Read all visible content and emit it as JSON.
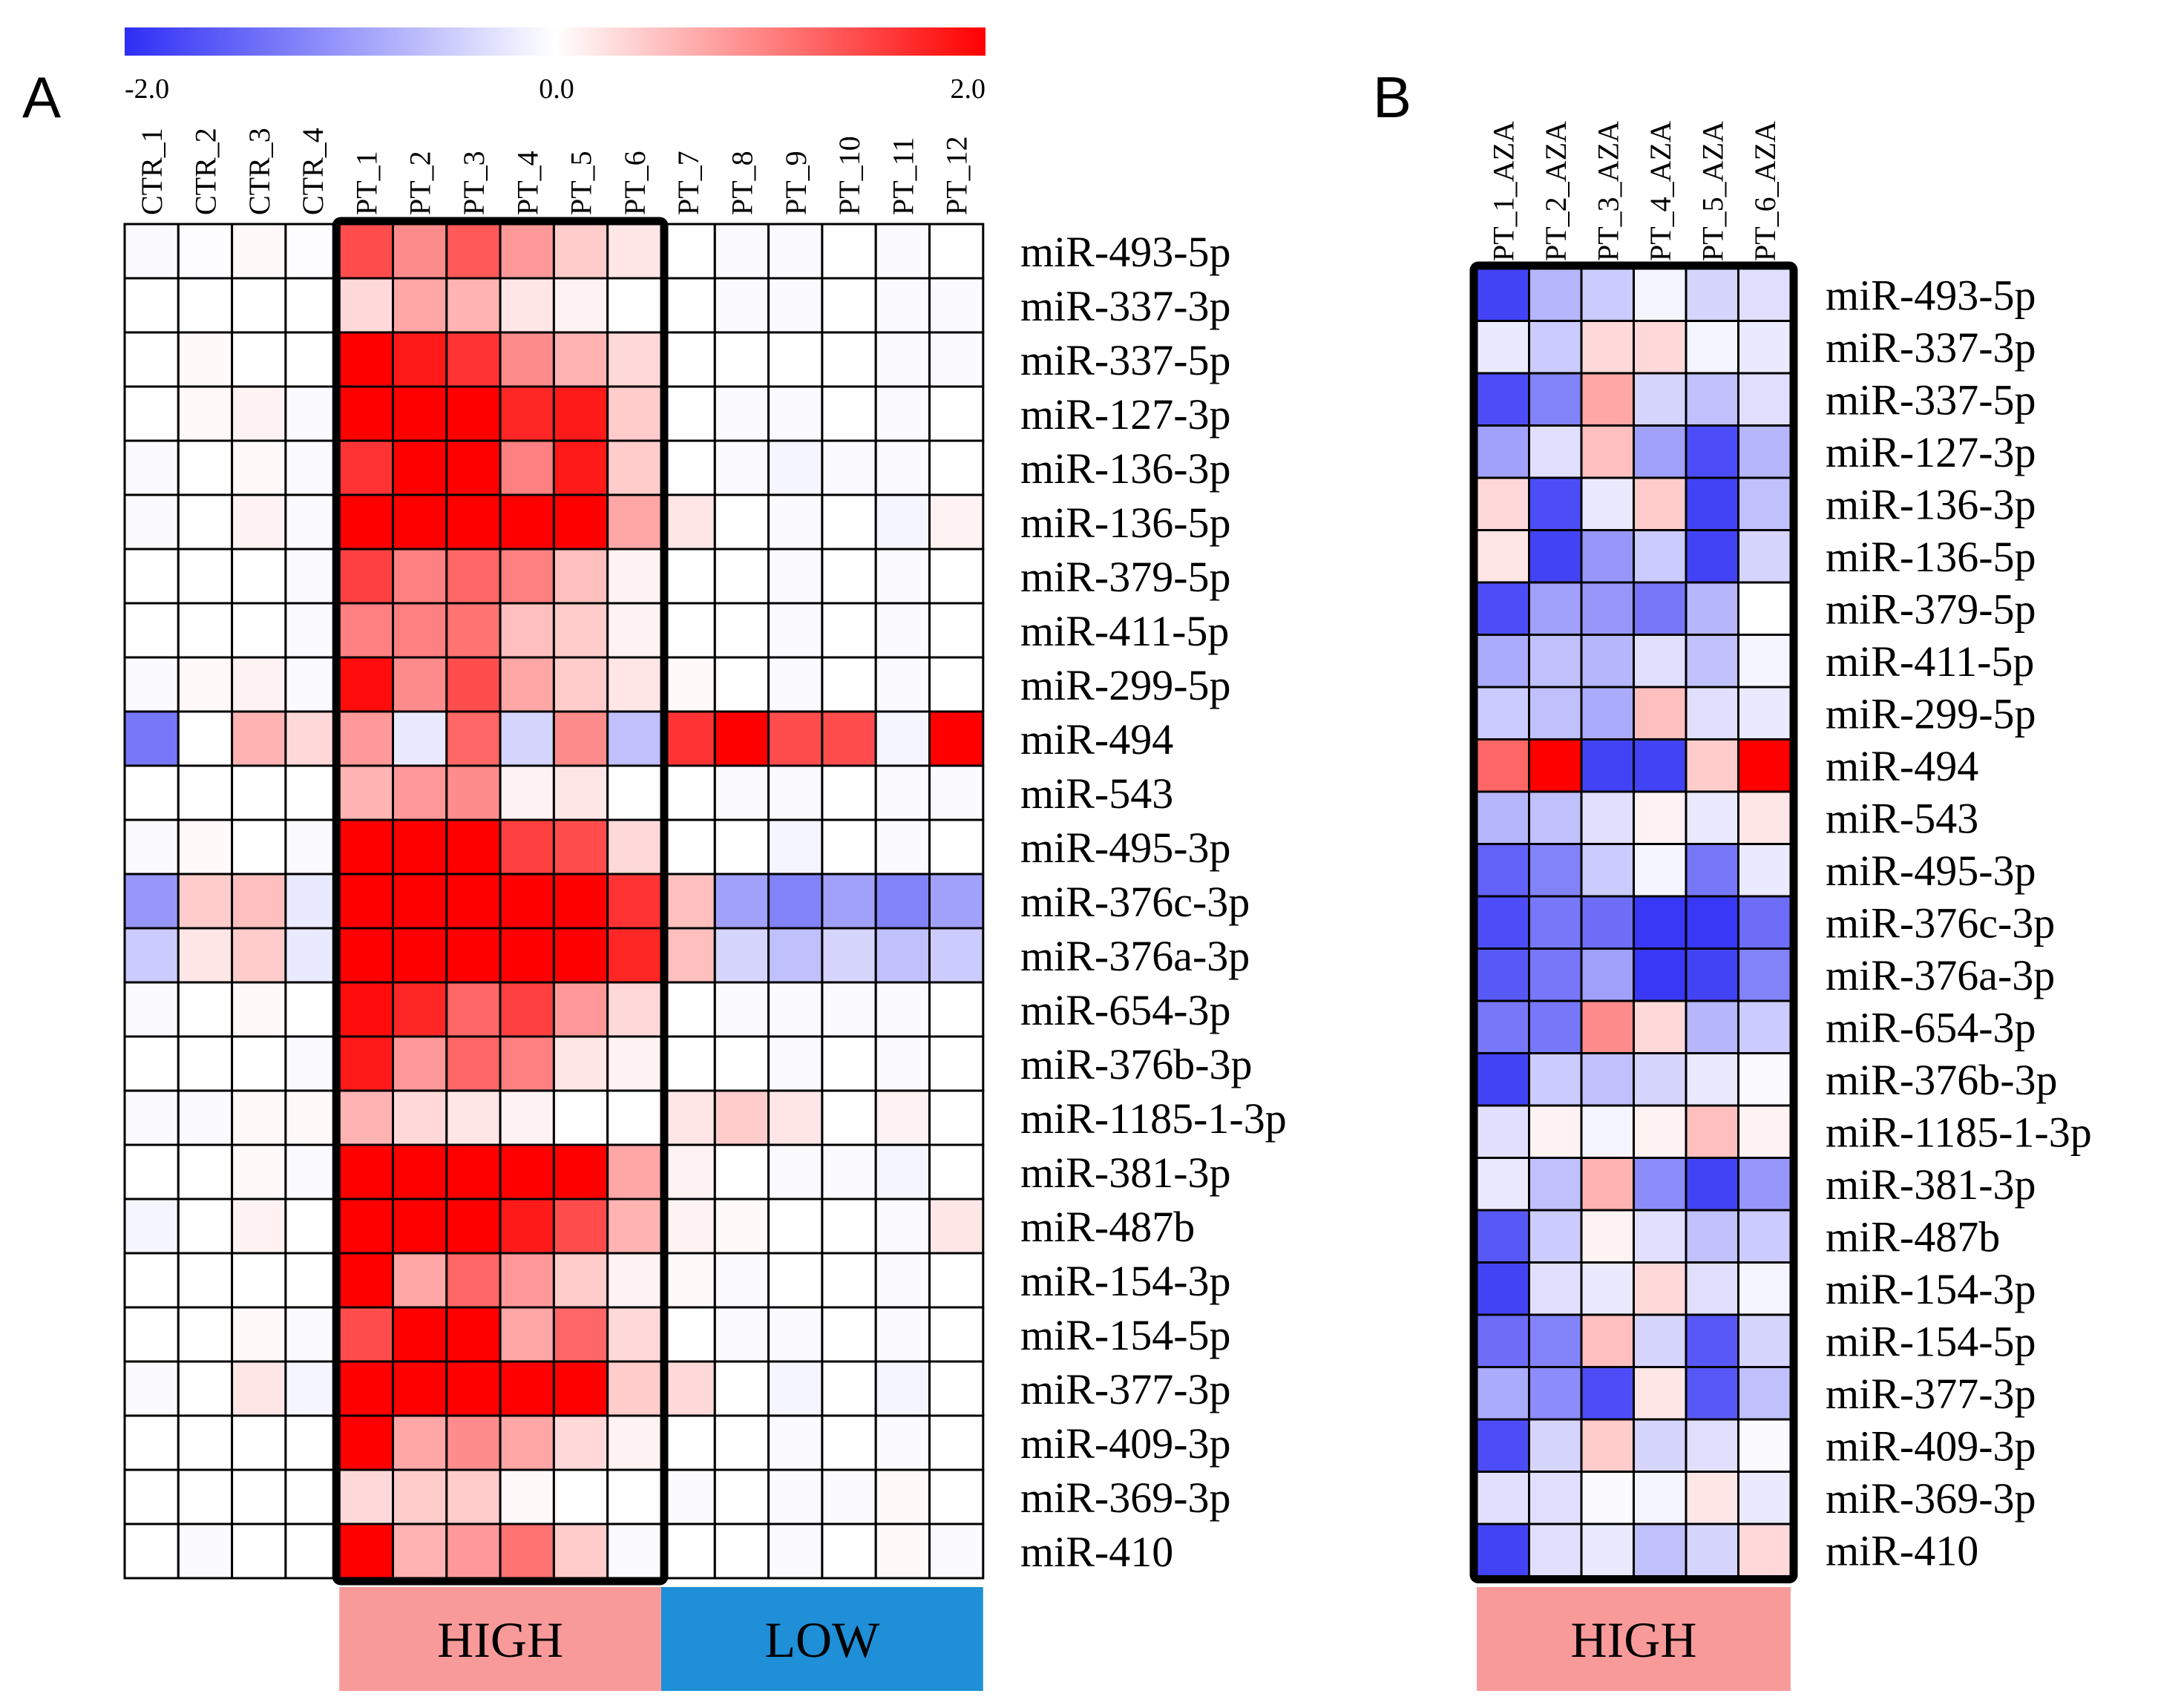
{
  "figure": {
    "panels": [
      "A",
      "B"
    ],
    "color_scale": {
      "min": -2.0,
      "mid": 0.0,
      "max": 2.0,
      "min_label": "-2.0",
      "mid_label": "0.0",
      "max_label": "2.0",
      "low_color": "#2e2ef5",
      "mid_color": "#ffffff",
      "high_color": "#ff0000"
    },
    "group_colors": {
      "high": "#f99a9a",
      "low": "#1f8fd8"
    }
  },
  "chart_data": [
    {
      "type": "heatmap",
      "panel": "A",
      "columns": [
        "CTR_1",
        "CTR_2",
        "CTR_3",
        "CTR_4",
        "PT_1",
        "PT_2",
        "PT_3",
        "PT_4",
        "PT_5",
        "PT_6",
        "PT_7",
        "PT_8",
        "PT_9",
        "PT_10",
        "PT_11",
        "PT_12"
      ],
      "rows": [
        "miR-493-5p",
        "miR-337-3p",
        "miR-337-5p",
        "miR-127-3p",
        "miR-136-3p",
        "miR-136-5p",
        "miR-379-5p",
        "miR-411-5p",
        "miR-299-5p",
        "miR-494",
        "miR-543",
        "miR-495-3p",
        "miR-376c-3p",
        "miR-376a-3p",
        "miR-654-3p",
        "miR-376b-3p",
        "miR-1185-1-3p",
        "miR-381-3p",
        "miR-487b",
        "miR-154-3p",
        "miR-154-5p",
        "miR-377-3p",
        "miR-409-3p",
        "miR-369-3p",
        "miR-410"
      ],
      "values": [
        [
          -0.05,
          -0.02,
          0.05,
          -0.02,
          1.4,
          0.9,
          1.3,
          0.8,
          0.4,
          0.2,
          0,
          -0.05,
          -0.05,
          0,
          -0.05,
          0
        ],
        [
          0,
          0,
          0,
          0,
          0.3,
          0.7,
          0.6,
          0.2,
          0.1,
          0,
          0,
          -0.05,
          -0.05,
          0,
          -0.05,
          -0.05
        ],
        [
          0,
          0.05,
          0,
          0,
          2.0,
          1.8,
          1.6,
          0.9,
          0.6,
          0.3,
          0,
          0,
          0,
          0,
          -0.05,
          -0.05
        ],
        [
          0,
          0.05,
          0.1,
          -0.05,
          2.0,
          2.0,
          2.0,
          1.7,
          1.8,
          0.4,
          0,
          -0.05,
          -0.05,
          0,
          -0.05,
          0
        ],
        [
          -0.05,
          0,
          0.05,
          -0.05,
          1.6,
          2.0,
          2.0,
          1.0,
          1.8,
          0.4,
          0,
          -0.05,
          -0.1,
          -0.05,
          -0.05,
          0
        ],
        [
          -0.05,
          0,
          0.1,
          -0.05,
          2.0,
          2.0,
          2.0,
          2.0,
          2.0,
          0.7,
          0.2,
          0,
          -0.05,
          0,
          -0.1,
          0.1
        ],
        [
          0,
          0,
          0,
          -0.05,
          1.5,
          1.0,
          1.2,
          1.0,
          0.5,
          0.1,
          0,
          0,
          -0.05,
          0,
          -0.05,
          0
        ],
        [
          0,
          0,
          0,
          -0.05,
          1.0,
          1.0,
          1.1,
          0.5,
          0.4,
          0.1,
          0,
          0,
          -0.05,
          0,
          -0.05,
          0
        ],
        [
          -0.05,
          0.05,
          0.1,
          -0.05,
          1.9,
          0.9,
          1.4,
          0.7,
          0.4,
          0.2,
          0.05,
          0,
          -0.05,
          0,
          -0.05,
          0
        ],
        [
          -1.3,
          0,
          0.6,
          0.3,
          0.8,
          -0.2,
          1.2,
          -0.4,
          0.9,
          -0.6,
          1.6,
          2.0,
          1.4,
          1.4,
          -0.1,
          2.0
        ],
        [
          0,
          0,
          0,
          0,
          0.6,
          0.8,
          0.9,
          0.1,
          0.2,
          0,
          0,
          -0.05,
          -0.05,
          0,
          -0.05,
          -0.05
        ],
        [
          -0.05,
          0.05,
          0,
          -0.05,
          2.0,
          2.0,
          2.0,
          1.5,
          1.4,
          0.3,
          0,
          0,
          -0.1,
          0,
          -0.05,
          0
        ],
        [
          -1.0,
          0.4,
          0.5,
          -0.2,
          2.0,
          2.0,
          2.0,
          2.0,
          2.0,
          1.6,
          0.5,
          -0.9,
          -1.2,
          -0.9,
          -1.2,
          -0.9
        ],
        [
          -0.5,
          0.2,
          0.4,
          -0.2,
          2.0,
          2.0,
          2.0,
          2.0,
          2.0,
          1.7,
          0.5,
          -0.4,
          -0.6,
          -0.4,
          -0.6,
          -0.5
        ],
        [
          -0.05,
          0,
          0.05,
          0,
          1.9,
          1.7,
          1.2,
          1.5,
          0.8,
          0.3,
          0,
          -0.05,
          -0.05,
          -0.05,
          -0.05,
          0
        ],
        [
          0,
          0,
          0,
          -0.05,
          1.8,
          0.8,
          1.2,
          1.0,
          0.2,
          0.1,
          0,
          0,
          -0.05,
          0,
          -0.05,
          0
        ],
        [
          -0.05,
          -0.05,
          0.05,
          0.05,
          0.6,
          0.3,
          0.2,
          0.1,
          0,
          0,
          0.2,
          0.4,
          0.2,
          0,
          0.1,
          0
        ],
        [
          0,
          0,
          0.05,
          -0.05,
          2.0,
          2.0,
          2.0,
          2.0,
          2.0,
          0.7,
          0.1,
          0,
          -0.05,
          -0.05,
          -0.1,
          0
        ],
        [
          -0.1,
          0,
          0.1,
          0,
          2.0,
          2.0,
          2.0,
          1.8,
          1.4,
          0.6,
          0.1,
          0.05,
          0,
          0,
          -0.05,
          0.2
        ],
        [
          0,
          0,
          0,
          0,
          2.0,
          0.7,
          1.2,
          0.8,
          0.4,
          0.1,
          0.05,
          -0.05,
          0,
          0,
          -0.05,
          0
        ],
        [
          0,
          0,
          0.05,
          -0.05,
          1.4,
          2.0,
          2.0,
          0.7,
          1.2,
          0.3,
          0,
          -0.05,
          -0.05,
          0,
          -0.05,
          0
        ],
        [
          -0.05,
          0,
          0.2,
          -0.1,
          2.0,
          2.0,
          2.0,
          2.0,
          2.0,
          0.4,
          0.3,
          0,
          -0.1,
          0,
          -0.1,
          0
        ],
        [
          0,
          0,
          0,
          0,
          2.0,
          0.7,
          0.9,
          0.7,
          0.3,
          0.1,
          0,
          0,
          -0.05,
          0,
          -0.05,
          0
        ],
        [
          0,
          0,
          0,
          0,
          0.3,
          0.4,
          0.4,
          0.05,
          0,
          0,
          -0.05,
          0,
          -0.05,
          -0.05,
          0.05,
          0
        ],
        [
          0,
          -0.05,
          0,
          0,
          2.0,
          0.6,
          0.8,
          1.1,
          0.4,
          -0.05,
          0,
          0,
          -0.05,
          0,
          0.05,
          -0.05
        ]
      ],
      "groups": [
        {
          "label": "HIGH",
          "start": 4,
          "end": 9
        },
        {
          "label": "LOW",
          "start": 10,
          "end": 15
        }
      ],
      "highlight": {
        "start": 4,
        "end": 9
      }
    },
    {
      "type": "heatmap",
      "panel": "B",
      "columns": [
        "PT_1_AZA",
        "PT_2_AZA",
        "PT_3_AZA",
        "PT_4_AZA",
        "PT_5_AZA",
        "PT_6_AZA"
      ],
      "rows": [
        "miR-493-5p",
        "miR-337-3p",
        "miR-337-5p",
        "miR-127-3p",
        "miR-136-3p",
        "miR-136-5p",
        "miR-379-5p",
        "miR-411-5p",
        "miR-299-5p",
        "miR-494",
        "miR-543",
        "miR-495-3p",
        "miR-376c-3p",
        "miR-376a-3p",
        "miR-654-3p",
        "miR-376b-3p",
        "miR-1185-1-3p",
        "miR-381-3p",
        "miR-487b",
        "miR-154-3p",
        "miR-154-5p",
        "miR-377-3p",
        "miR-409-3p",
        "miR-369-3p",
        "miR-410"
      ],
      "values": [
        [
          -1.8,
          -0.7,
          -0.5,
          -0.1,
          -0.4,
          -0.3
        ],
        [
          -0.2,
          -0.5,
          0.3,
          0.3,
          -0.1,
          -0.2
        ],
        [
          -1.7,
          -1.2,
          0.7,
          -0.4,
          -0.6,
          -0.3
        ],
        [
          -0.9,
          -0.3,
          0.5,
          -0.9,
          -1.7,
          -0.7
        ],
        [
          0.3,
          -1.7,
          -0.2,
          0.4,
          -1.8,
          -0.6
        ],
        [
          0.2,
          -1.8,
          -1.0,
          -0.5,
          -1.8,
          -0.4
        ],
        [
          -1.7,
          -0.9,
          -1.0,
          -1.3,
          -0.7,
          0
        ],
        [
          -0.8,
          -0.6,
          -0.7,
          -0.3,
          -0.6,
          -0.1
        ],
        [
          -0.5,
          -0.6,
          -0.8,
          0.5,
          -0.3,
          -0.2
        ],
        [
          1.2,
          2.0,
          -1.8,
          -1.8,
          0.4,
          2.0
        ],
        [
          -0.7,
          -0.6,
          -0.3,
          0.1,
          -0.2,
          0.2
        ],
        [
          -1.5,
          -1.2,
          -0.5,
          -0.1,
          -1.3,
          -0.2
        ],
        [
          -1.7,
          -1.3,
          -1.4,
          -1.9,
          -1.9,
          -1.4
        ],
        [
          -1.6,
          -1.3,
          -0.9,
          -1.9,
          -1.8,
          -1.2
        ],
        [
          -1.3,
          -1.3,
          0.9,
          0.3,
          -0.7,
          -0.5
        ],
        [
          -1.8,
          -0.5,
          -0.6,
          -0.4,
          -0.2,
          -0.05
        ],
        [
          -0.3,
          0.1,
          -0.1,
          0.1,
          0.5,
          0.1
        ],
        [
          -0.2,
          -0.6,
          0.6,
          -1.1,
          -1.8,
          -1.0
        ],
        [
          -1.6,
          -0.5,
          0.1,
          -0.3,
          -0.6,
          -0.5
        ],
        [
          -1.8,
          -0.3,
          -0.2,
          0.3,
          -0.3,
          -0.1
        ],
        [
          -1.4,
          -1.2,
          0.5,
          -0.4,
          -1.6,
          -0.4
        ],
        [
          -0.8,
          -1.1,
          -1.7,
          0.2,
          -1.6,
          -0.6
        ],
        [
          -1.7,
          -0.4,
          0.4,
          -0.4,
          -0.3,
          -0.05
        ],
        [
          -0.3,
          -0.3,
          -0.05,
          -0.1,
          0.2,
          -0.2
        ],
        [
          -1.8,
          -0.3,
          -0.2,
          -0.6,
          -0.4,
          0.3
        ]
      ],
      "groups": [
        {
          "label": "HIGH",
          "start": 0,
          "end": 5
        }
      ],
      "highlight": {
        "start": 0,
        "end": 5
      }
    }
  ]
}
